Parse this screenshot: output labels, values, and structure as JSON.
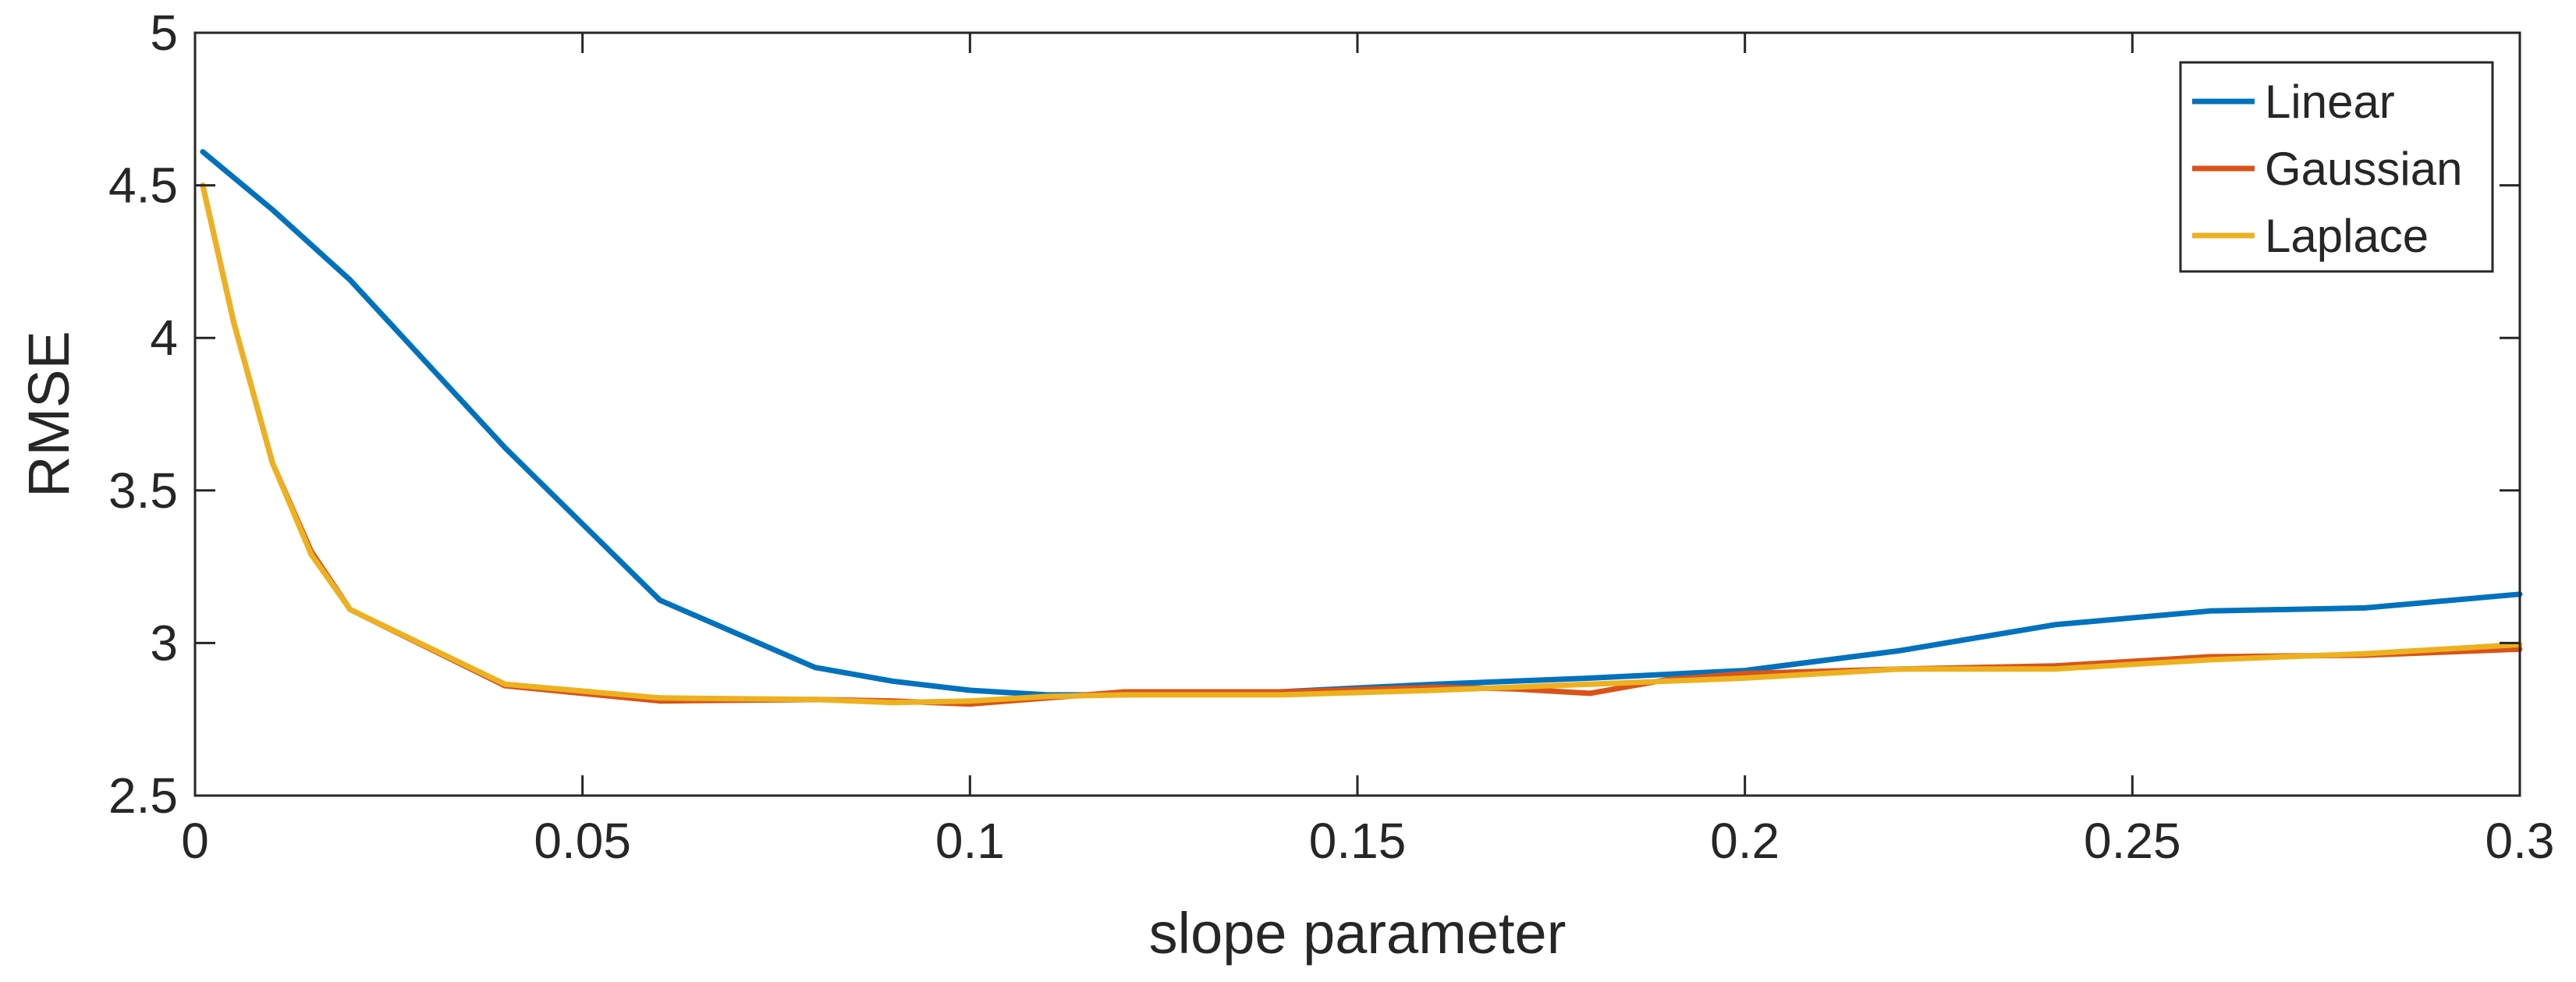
{
  "chart_data": {
    "type": "line",
    "title": "",
    "xlabel": "slope parameter",
    "ylabel": "RMSE",
    "xlim": [
      0,
      0.3
    ],
    "ylim": [
      2.5,
      5
    ],
    "xticks": [
      0,
      0.05,
      0.1,
      0.15,
      0.2,
      0.25,
      0.3
    ],
    "xtick_labels": [
      "0",
      "0.05",
      "0.1",
      "0.15",
      "0.2",
      "0.25",
      "0.3"
    ],
    "yticks": [
      2.5,
      3,
      3.5,
      4,
      4.5,
      5
    ],
    "ytick_labels": [
      "2.5",
      "3",
      "3.5",
      "4",
      "4.5",
      "5"
    ],
    "grid": false,
    "legend_position": "top-right",
    "series": [
      {
        "name": "Linear",
        "color": "#0072BD",
        "x": [
          0.001,
          0.01,
          0.02,
          0.04,
          0.06,
          0.08,
          0.09,
          0.1,
          0.11,
          0.12,
          0.14,
          0.16,
          0.18,
          0.2,
          0.22,
          0.24,
          0.26,
          0.28,
          0.3
        ],
        "y": [
          4.61,
          4.42,
          4.19,
          3.64,
          3.14,
          2.92,
          2.875,
          2.845,
          2.83,
          2.83,
          2.84,
          2.865,
          2.885,
          2.91,
          2.975,
          3.06,
          3.105,
          3.115,
          3.16
        ]
      },
      {
        "name": "Gaussian",
        "color": "#D95319",
        "x": [
          0.001,
          0.005,
          0.01,
          0.015,
          0.02,
          0.04,
          0.06,
          0.08,
          0.09,
          0.1,
          0.11,
          0.12,
          0.14,
          0.16,
          0.17,
          0.18,
          0.19,
          0.2,
          0.22,
          0.24,
          0.26,
          0.28,
          0.3
        ],
        "y": [
          4.5,
          4.05,
          3.59,
          3.3,
          3.11,
          2.86,
          2.81,
          2.815,
          2.81,
          2.8,
          2.82,
          2.84,
          2.84,
          2.855,
          2.85,
          2.835,
          2.88,
          2.9,
          2.915,
          2.925,
          2.955,
          2.96,
          2.98
        ]
      },
      {
        "name": "Laplace",
        "color": "#EDB120",
        "x": [
          0.001,
          0.005,
          0.01,
          0.015,
          0.02,
          0.04,
          0.06,
          0.08,
          0.09,
          0.1,
          0.11,
          0.12,
          0.14,
          0.16,
          0.18,
          0.2,
          0.22,
          0.24,
          0.26,
          0.28,
          0.3
        ],
        "y": [
          4.5,
          4.05,
          3.59,
          3.29,
          3.11,
          2.865,
          2.82,
          2.815,
          2.805,
          2.81,
          2.825,
          2.83,
          2.83,
          2.845,
          2.865,
          2.885,
          2.915,
          2.915,
          2.945,
          2.965,
          2.995
        ]
      }
    ]
  }
}
